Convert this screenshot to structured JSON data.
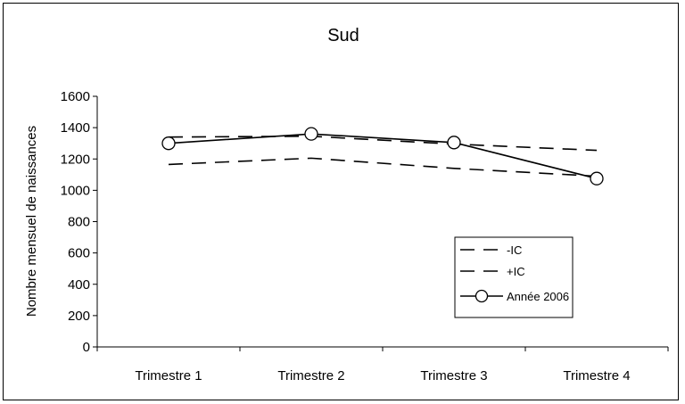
{
  "chart_data": {
    "type": "line",
    "title": "Sud",
    "xlabel": "",
    "ylabel": "Nombre mensuel de naissances",
    "categories": [
      "Trimestre 1",
      "Trimestre 2",
      "Trimestre 3",
      "Trimestre 4"
    ],
    "ylim": [
      0,
      1600
    ],
    "yticks": [
      0,
      200,
      400,
      600,
      800,
      1000,
      1200,
      1400,
      1600
    ],
    "grid": false,
    "legend_position": "bottom-right",
    "series": [
      {
        "name": "-IC",
        "values": [
          1165,
          1205,
          1140,
          1090
        ],
        "style": "dashed",
        "marker": "none",
        "color": "#000000"
      },
      {
        "name": "+IC",
        "values": [
          1340,
          1345,
          1295,
          1255
        ],
        "style": "dashed",
        "marker": "none",
        "color": "#000000"
      },
      {
        "name": "Année 2006",
        "values": [
          1300,
          1360,
          1305,
          1075
        ],
        "style": "solid",
        "marker": "circle",
        "color": "#000000"
      }
    ]
  }
}
